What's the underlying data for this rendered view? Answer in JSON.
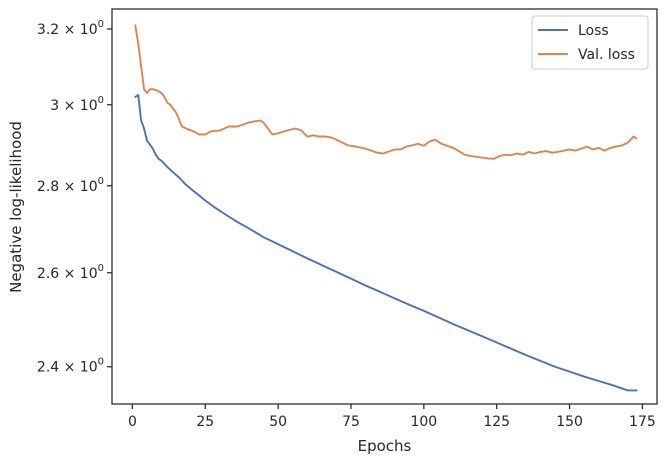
{
  "chart_data": {
    "type": "line",
    "title": "",
    "xlabel": "Epochs",
    "ylabel": "Negative log-likelihood",
    "xlim": [
      -7,
      180
    ],
    "ylim": [
      2.325,
      3.255
    ],
    "yscale": "log",
    "grid": false,
    "legend_position": "top-right",
    "x_ticks": [
      0,
      25,
      50,
      75,
      100,
      125,
      150,
      175
    ],
    "x_tick_labels": [
      "0",
      "25",
      "50",
      "75",
      "100",
      "125",
      "150",
      "175"
    ],
    "y_ticks": [
      {
        "value": 2.4,
        "mantissa": "2.4",
        "times": "×",
        "base": "10",
        "exponent": "0"
      },
      {
        "value": 2.6,
        "mantissa": "2.6",
        "times": "×",
        "base": "10",
        "exponent": "0"
      },
      {
        "value": 2.8,
        "mantissa": "2.8",
        "times": "×",
        "base": "10",
        "exponent": "0"
      },
      {
        "value": 3.0,
        "mantissa": "3",
        "times": "×",
        "base": "10",
        "exponent": "0"
      },
      {
        "value": 3.2,
        "mantissa": "3.2",
        "times": "×",
        "base": "10",
        "exponent": "0"
      }
    ],
    "series": [
      {
        "name": "Loss",
        "color": "#4c72b0",
        "x": [
          1,
          2,
          3,
          4,
          5,
          6,
          7,
          8,
          9,
          10,
          12,
          14,
          16,
          18,
          20,
          22,
          25,
          28,
          32,
          36,
          40,
          45,
          50,
          55,
          60,
          65,
          70,
          75,
          80,
          85,
          90,
          95,
          100,
          105,
          110,
          115,
          120,
          125,
          130,
          135,
          140,
          145,
          150,
          155,
          160,
          165,
          170,
          172,
          173
        ],
        "y": [
          3.02,
          3.025,
          2.96,
          2.94,
          2.91,
          2.9,
          2.89,
          2.875,
          2.865,
          2.86,
          2.845,
          2.832,
          2.82,
          2.805,
          2.793,
          2.782,
          2.765,
          2.75,
          2.732,
          2.715,
          2.7,
          2.68,
          2.664,
          2.648,
          2.632,
          2.617,
          2.602,
          2.587,
          2.572,
          2.558,
          2.544,
          2.53,
          2.517,
          2.503,
          2.489,
          2.476,
          2.463,
          2.45,
          2.437,
          2.424,
          2.412,
          2.4,
          2.39,
          2.38,
          2.371,
          2.362,
          2.352,
          2.352,
          2.352
        ]
      },
      {
        "name": "Val. loss",
        "color": "#dd8452",
        "x": [
          1,
          2,
          3,
          4,
          5,
          6,
          7,
          8,
          9,
          10,
          11,
          12,
          13,
          14,
          15,
          17,
          19,
          21,
          23,
          25,
          27,
          30,
          33,
          36,
          38,
          40,
          42,
          44,
          45,
          46,
          48,
          50,
          53,
          56,
          58,
          60,
          62,
          64,
          66,
          68,
          70,
          72,
          74,
          76,
          78,
          80,
          82,
          84,
          86,
          88,
          90,
          92,
          94,
          96,
          98,
          100,
          102,
          104,
          106,
          108,
          110,
          112,
          114,
          116,
          118,
          120,
          122,
          124,
          126,
          128,
          130,
          132,
          134,
          136,
          138,
          140,
          142,
          144,
          146,
          148,
          150,
          152,
          154,
          156,
          158,
          160,
          162,
          164,
          166,
          168,
          170,
          172,
          173
        ],
        "y": [
          3.21,
          3.16,
          3.1,
          3.04,
          3.03,
          3.04,
          3.04,
          3.038,
          3.035,
          3.03,
          3.02,
          3.005,
          3.0,
          2.99,
          2.98,
          2.945,
          2.938,
          2.933,
          2.925,
          2.925,
          2.933,
          2.935,
          2.945,
          2.945,
          2.95,
          2.955,
          2.958,
          2.96,
          2.955,
          2.945,
          2.925,
          2.928,
          2.935,
          2.94,
          2.935,
          2.92,
          2.923,
          2.92,
          2.92,
          2.918,
          2.912,
          2.905,
          2.898,
          2.896,
          2.893,
          2.89,
          2.885,
          2.88,
          2.878,
          2.883,
          2.888,
          2.888,
          2.895,
          2.898,
          2.902,
          2.897,
          2.908,
          2.912,
          2.902,
          2.897,
          2.892,
          2.884,
          2.875,
          2.872,
          2.87,
          2.868,
          2.866,
          2.865,
          2.872,
          2.875,
          2.874,
          2.878,
          2.875,
          2.882,
          2.878,
          2.882,
          2.884,
          2.88,
          2.882,
          2.885,
          2.888,
          2.885,
          2.89,
          2.895,
          2.888,
          2.892,
          2.885,
          2.892,
          2.895,
          2.898,
          2.905,
          2.92,
          2.915
        ]
      }
    ]
  }
}
